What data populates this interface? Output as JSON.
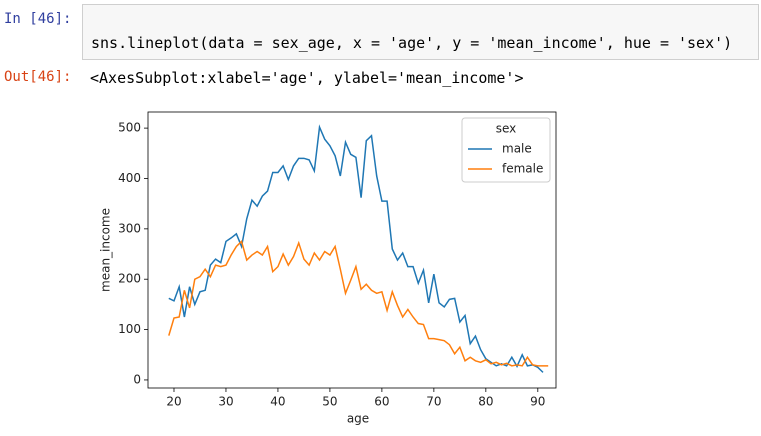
{
  "cell": {
    "in_prompt": "In [46]:",
    "code": "sns.lineplot(data = sex_age, x = 'age', y = 'mean_income', hue = 'sex')",
    "out_prompt": "Out[46]:",
    "output": "<AxesSubplot:xlabel='age', ylabel='mean_income'>"
  },
  "chart_data": {
    "type": "line",
    "x_label": "age",
    "y_label": "mean_income",
    "x": [
      19,
      20,
      21,
      22,
      23,
      24,
      25,
      26,
      27,
      28,
      29,
      30,
      31,
      32,
      33,
      34,
      35,
      36,
      37,
      38,
      39,
      40,
      41,
      42,
      43,
      44,
      45,
      46,
      47,
      48,
      49,
      50,
      51,
      52,
      53,
      54,
      55,
      56,
      57,
      58,
      59,
      60,
      61,
      62,
      63,
      64,
      65,
      66,
      67,
      68,
      69,
      70,
      71,
      72,
      73,
      74,
      75,
      76,
      77,
      78,
      79,
      80,
      81,
      82,
      83,
      84,
      85,
      86,
      87,
      88,
      89,
      90,
      91,
      92
    ],
    "series": [
      {
        "name": "male",
        "color": "#1f77b4",
        "values": [
          162,
          157,
          185,
          125,
          185,
          150,
          175,
          178,
          228,
          240,
          233,
          275,
          282,
          290,
          265,
          320,
          357,
          345,
          365,
          375,
          412,
          412,
          425,
          398,
          425,
          440,
          440,
          437,
          415,
          502,
          478,
          465,
          445,
          405,
          472,
          448,
          442,
          362,
          475,
          485,
          405,
          355,
          355,
          260,
          238,
          252,
          225,
          225,
          192,
          218,
          153,
          210,
          153,
          145,
          160,
          162,
          115,
          128,
          72,
          87,
          60,
          42,
          35,
          28,
          32,
          28,
          45,
          27,
          50,
          28,
          30,
          25,
          15,
          null
        ]
      },
      {
        "name": "female",
        "color": "#ff7f0e",
        "values": [
          88,
          123,
          125,
          178,
          143,
          200,
          205,
          220,
          205,
          228,
          225,
          228,
          248,
          265,
          275,
          238,
          248,
          255,
          248,
          265,
          215,
          225,
          250,
          228,
          245,
          272,
          240,
          228,
          252,
          238,
          255,
          248,
          265,
          220,
          172,
          198,
          225,
          180,
          190,
          178,
          172,
          175,
          138,
          175,
          148,
          125,
          140,
          125,
          112,
          110,
          82,
          82,
          80,
          78,
          70,
          52,
          65,
          38,
          45,
          38,
          35,
          40,
          32,
          35,
          30,
          33,
          28,
          30,
          28,
          45,
          30,
          28,
          28,
          28
        ]
      }
    ],
    "legend_title": "sex",
    "legend_position": "upper right",
    "xlim": [
      15,
      93.5
    ],
    "ylim": [
      -16,
      532
    ],
    "xticks": [
      20,
      30,
      40,
      50,
      60,
      70,
      80,
      90
    ],
    "yticks": [
      0,
      100,
      200,
      300,
      400,
      500
    ]
  }
}
